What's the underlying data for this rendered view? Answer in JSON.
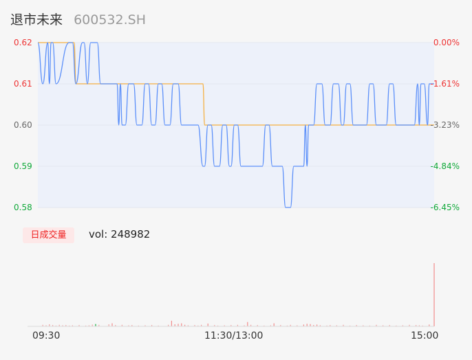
{
  "header": {
    "name": "退市未来",
    "code": "600532.SH"
  },
  "colors": {
    "price_line": "#5b8ff9",
    "avg_line": "#f5b041",
    "up": "#ee3333",
    "down": "#11a93a",
    "neutral": "#666666",
    "plot_bg": "#edf1fa",
    "volume_bar": "#f28b8b"
  },
  "price_axis": {
    "ticks": [
      "0.62",
      "0.61",
      "0.60",
      "0.59",
      "0.58"
    ],
    "tick_values": [
      0.62,
      0.61,
      0.6,
      0.59,
      0.58
    ],
    "pct_ticks": [
      "0.00%",
      "-1.61%",
      "-3.23%",
      "-4.84%",
      "-6.45%"
    ],
    "ylim": [
      0.58,
      0.62
    ]
  },
  "volume_panel": {
    "badge": "日成交量",
    "vol_label": "vol: 248982"
  },
  "time_axis": {
    "labels": [
      "09:30",
      "11:30/13:00",
      "15:00"
    ]
  },
  "chart_data": [
    {
      "type": "line",
      "title": "",
      "xlabel": "",
      "ylabel": "",
      "x_range_minutes": [
        0,
        240
      ],
      "ylim": [
        0.58,
        0.62
      ],
      "series": [
        {
          "key": "price",
          "steps": [
            [
              0,
              0.62
            ],
            [
              3,
              0.61
            ],
            [
              6,
              0.62
            ],
            [
              7,
              0.61
            ],
            [
              8,
              0.62
            ],
            [
              9,
              0.62
            ],
            [
              11,
              0.61
            ],
            [
              19,
              0.62
            ],
            [
              21,
              0.62
            ],
            [
              23,
              0.61
            ],
            [
              27,
              0.62
            ],
            [
              28,
              0.62
            ],
            [
              30,
              0.61
            ],
            [
              32,
              0.62
            ],
            [
              36,
              0.62
            ],
            [
              38,
              0.61
            ],
            [
              48,
              0.61
            ],
            [
              49,
              0.6
            ],
            [
              50,
              0.61
            ],
            [
              51,
              0.6
            ],
            [
              53,
              0.6
            ],
            [
              55,
              0.61
            ],
            [
              58,
              0.61
            ],
            [
              60,
              0.6
            ],
            [
              63,
              0.6
            ],
            [
              65,
              0.61
            ],
            [
              67,
              0.61
            ],
            [
              69,
              0.6
            ],
            [
              71,
              0.6
            ],
            [
              73,
              0.61
            ],
            [
              75,
              0.61
            ],
            [
              77,
              0.6
            ],
            [
              80,
              0.6
            ],
            [
              82,
              0.61
            ],
            [
              85,
              0.61
            ],
            [
              87,
              0.6
            ],
            [
              97,
              0.6
            ],
            [
              100,
              0.59
            ],
            [
              101,
              0.59
            ],
            [
              103,
              0.6
            ],
            [
              105,
              0.6
            ],
            [
              107,
              0.59
            ],
            [
              110,
              0.59
            ],
            [
              112,
              0.6
            ],
            [
              114,
              0.6
            ],
            [
              116,
              0.59
            ],
            [
              117,
              0.59
            ],
            [
              119,
              0.6
            ],
            [
              121,
              0.6
            ],
            [
              123,
              0.59
            ],
            [
              136,
              0.59
            ],
            [
              138,
              0.6
            ],
            [
              140,
              0.6
            ],
            [
              142,
              0.59
            ],
            [
              148,
              0.59
            ],
            [
              150,
              0.58
            ],
            [
              153,
              0.58
            ],
            [
              155,
              0.59
            ],
            [
              161,
              0.59
            ],
            [
              162,
              0.6
            ],
            [
              163,
              0.59
            ],
            [
              164,
              0.6
            ],
            [
              167,
              0.6
            ],
            [
              169,
              0.61
            ],
            [
              172,
              0.61
            ],
            [
              174,
              0.6
            ],
            [
              177,
              0.6
            ],
            [
              179,
              0.61
            ],
            [
              182,
              0.61
            ],
            [
              184,
              0.6
            ],
            [
              185,
              0.6
            ],
            [
              187,
              0.61
            ],
            [
              189,
              0.61
            ],
            [
              191,
              0.6
            ],
            [
              199,
              0.6
            ],
            [
              201,
              0.61
            ],
            [
              203,
              0.61
            ],
            [
              205,
              0.6
            ],
            [
              211,
              0.6
            ],
            [
              213,
              0.61
            ],
            [
              215,
              0.61
            ],
            [
              217,
              0.6
            ],
            [
              228,
              0.6
            ],
            [
              230,
              0.61
            ],
            [
              231,
              0.6
            ],
            [
              232,
              0.61
            ],
            [
              234,
              0.61
            ],
            [
              236,
              0.6
            ],
            [
              237,
              0.61
            ],
            [
              240,
              0.61
            ]
          ]
        },
        {
          "key": "average",
          "steps": [
            [
              0,
              0.62
            ],
            [
              22,
              0.62
            ],
            [
              23,
              0.61
            ],
            [
              37,
              0.61
            ],
            [
              38,
              0.61
            ],
            [
              100,
              0.61
            ],
            [
              101,
              0.6
            ],
            [
              240,
              0.6
            ]
          ]
        }
      ]
    },
    {
      "type": "bar",
      "title": "",
      "x_range_minutes": [
        0,
        240
      ],
      "ylim": [
        0,
        248982
      ],
      "series": [
        {
          "key": "volume",
          "x": [
            3,
            5,
            7,
            9,
            11,
            13,
            15,
            17,
            19,
            21,
            25,
            29,
            31,
            33,
            35,
            37,
            43,
            45,
            47,
            51,
            55,
            57,
            61,
            65,
            69,
            73,
            79,
            81,
            83,
            85,
            87,
            89,
            91,
            95,
            97,
            99,
            103,
            107,
            109,
            113,
            117,
            121,
            125,
            127,
            129,
            133,
            137,
            141,
            143,
            147,
            151,
            153,
            157,
            161,
            163,
            165,
            167,
            169,
            171,
            175,
            177,
            181,
            185,
            189,
            193,
            197,
            201,
            205,
            209,
            213,
            217,
            221,
            225,
            229,
            231,
            233,
            237,
            240
          ],
          "values": [
            6000,
            4000,
            8000,
            5000,
            3000,
            6000,
            4000,
            5000,
            3000,
            4000,
            5000,
            3000,
            4000,
            7000,
            9000,
            6000,
            8000,
            12000,
            5000,
            6000,
            4000,
            5000,
            3000,
            4000,
            5000,
            3000,
            6000,
            22000,
            8000,
            10000,
            12000,
            6000,
            4000,
            5000,
            3000,
            6000,
            11000,
            5000,
            3000,
            4000,
            5000,
            6000,
            4000,
            17000,
            6000,
            5000,
            3000,
            4000,
            12000,
            5000,
            3000,
            6000,
            4000,
            7000,
            10000,
            9000,
            5000,
            7000,
            4000,
            3000,
            5000,
            4000,
            6000,
            3000,
            5000,
            4000,
            3000,
            6000,
            4000,
            5000,
            3000,
            4000,
            6000,
            5000,
            4000,
            3000,
            7000,
            248982
          ],
          "color_tags": [
            "n",
            "n",
            "n",
            "n",
            "n",
            "n",
            "n",
            "n",
            "n",
            "n",
            "n",
            "n",
            "n",
            "n",
            "d",
            "n",
            "n",
            "r",
            "n",
            "n",
            "n",
            "n",
            "n",
            "n",
            "n",
            "n",
            "n",
            "r",
            "r",
            "r",
            "r",
            "r",
            "n",
            "n",
            "n",
            "n",
            "r",
            "n",
            "n",
            "n",
            "n",
            "n",
            "n",
            "r",
            "n",
            "n",
            "n",
            "n",
            "r",
            "n",
            "n",
            "n",
            "n",
            "r",
            "r",
            "r",
            "r",
            "r",
            "r",
            "n",
            "n",
            "n",
            "n",
            "n",
            "n",
            "n",
            "n",
            "n",
            "n",
            "n",
            "n",
            "n",
            "n",
            "n",
            "n",
            "n",
            "r",
            "r"
          ]
        }
      ]
    }
  ]
}
